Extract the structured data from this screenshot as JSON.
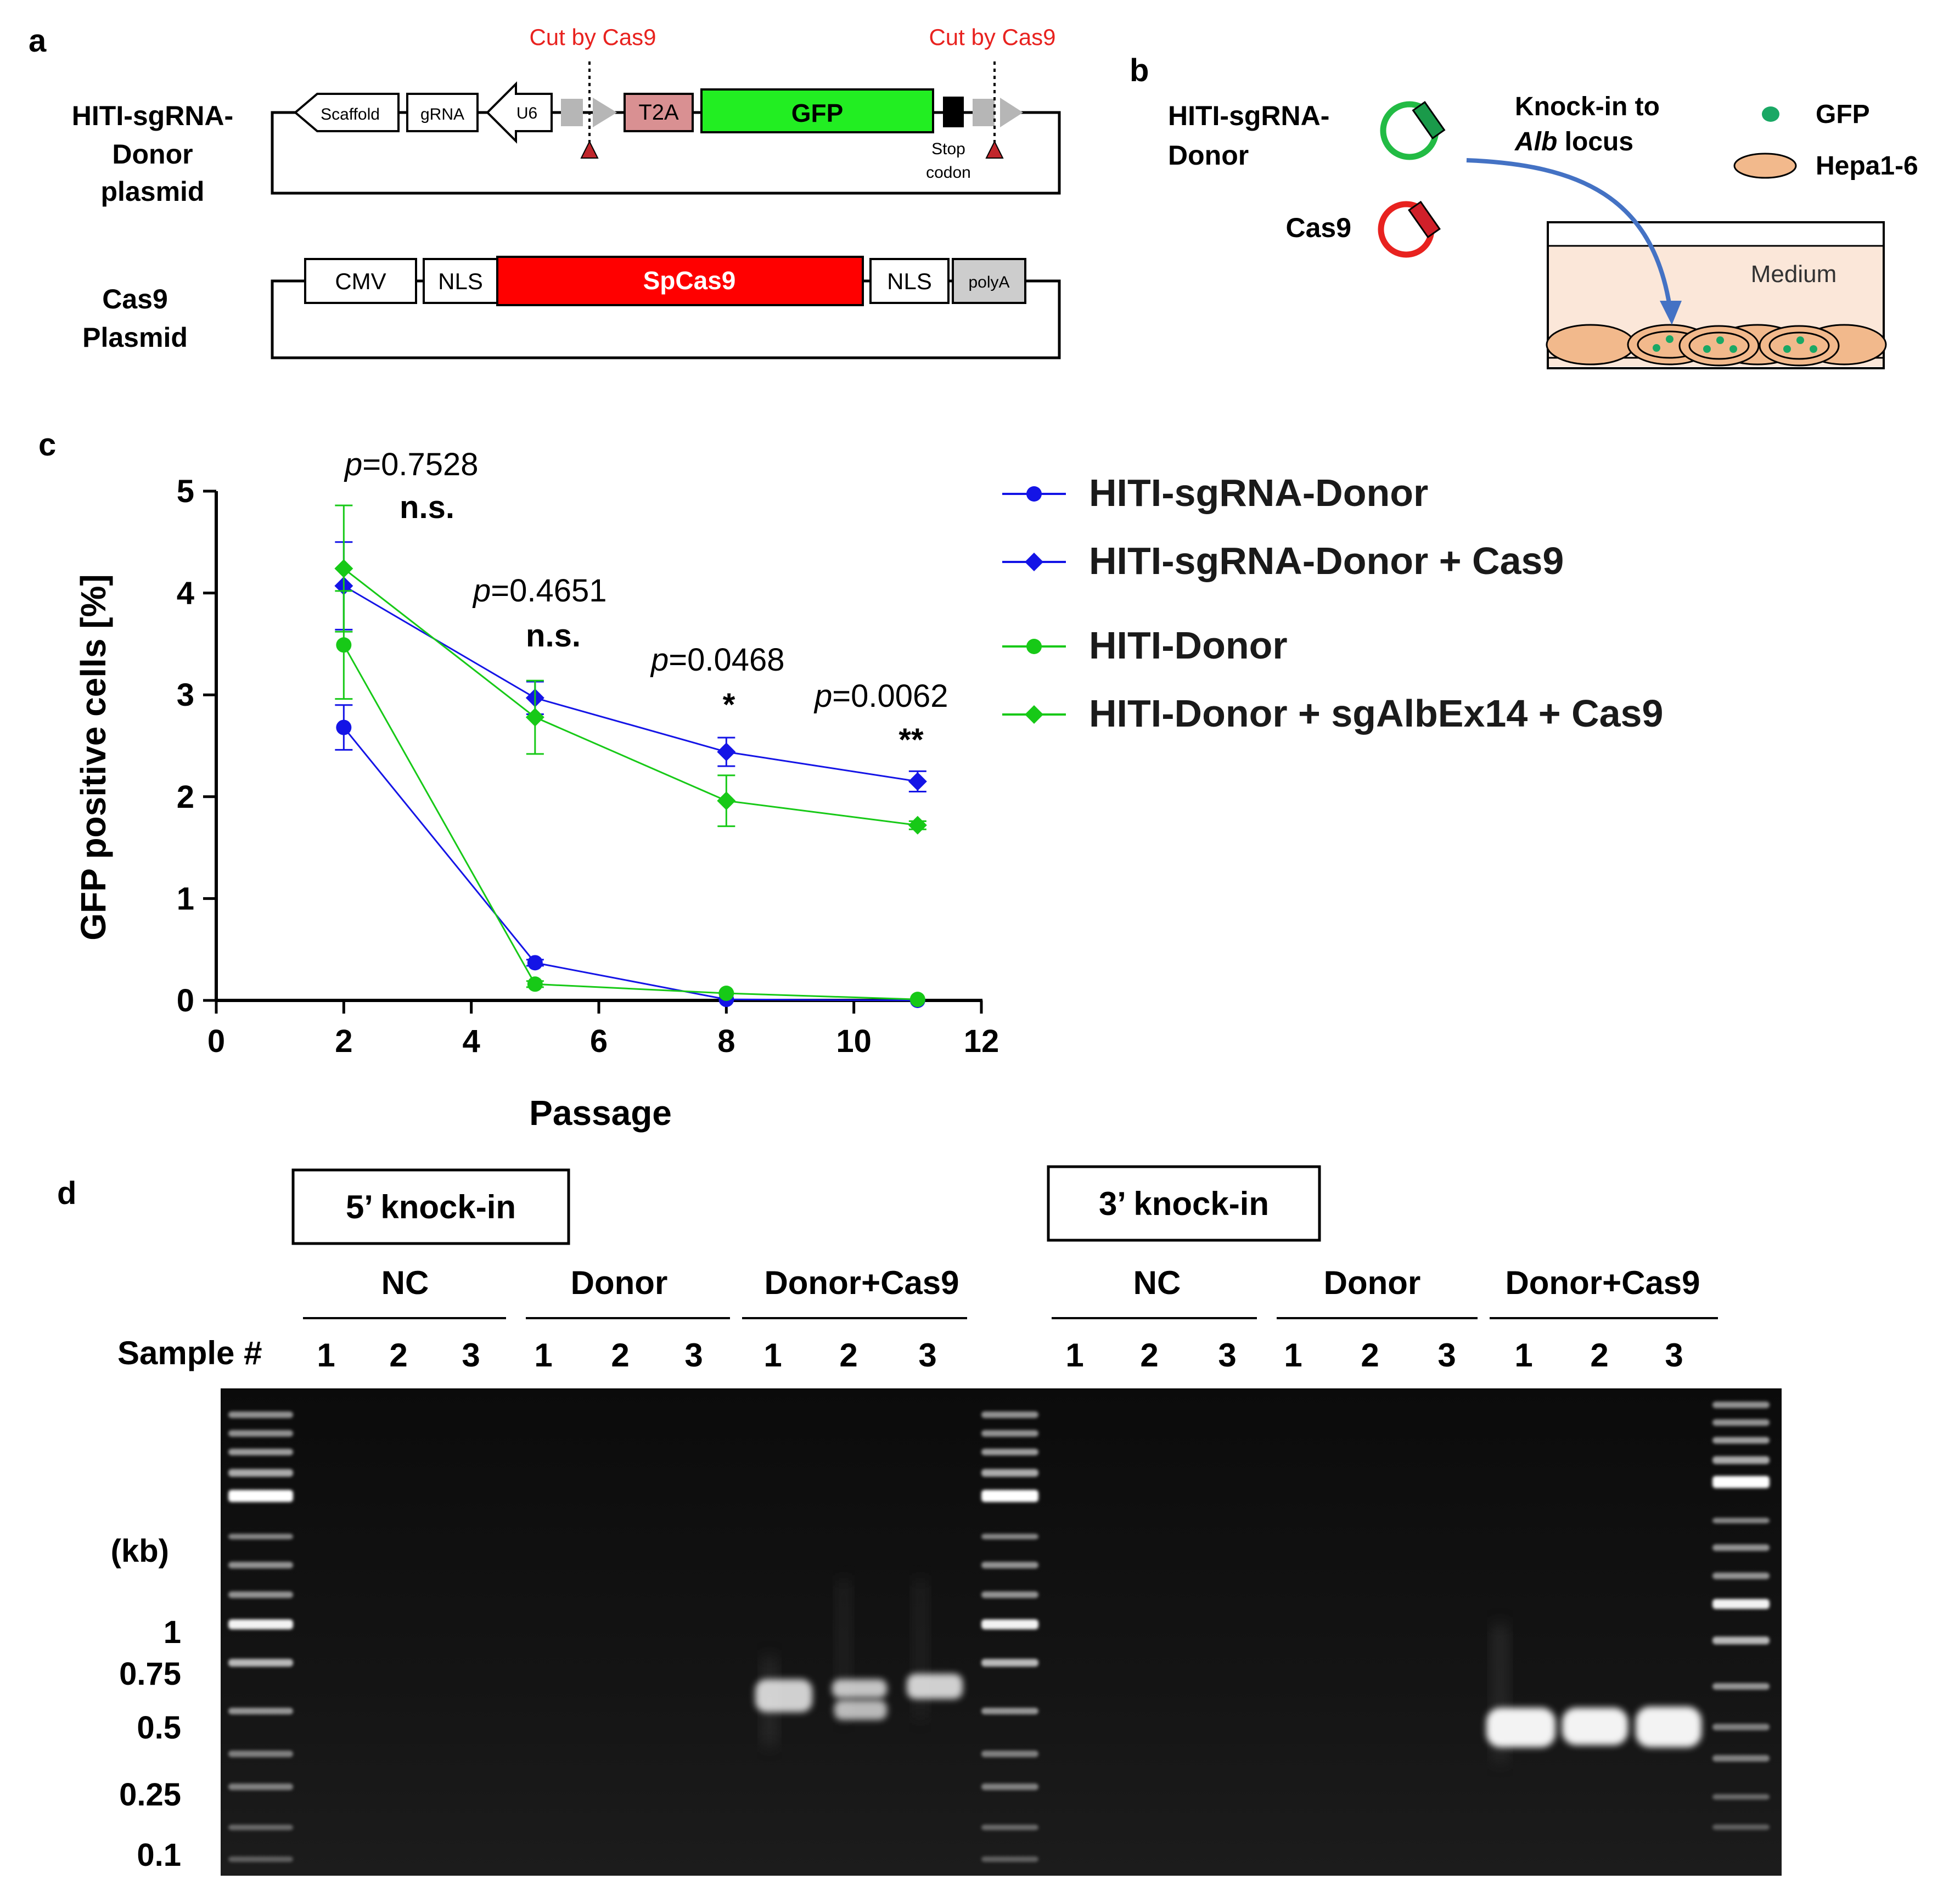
{
  "panel_labels": {
    "a": "a",
    "b": "b",
    "c": "c",
    "d": "d"
  },
  "panel_a": {
    "cut_label": "Cut by Cas9",
    "hiti_plasmid_lines": [
      "HITI-sgRNA-",
      "Donor",
      "plasmid"
    ],
    "hiti_elements": {
      "scaffold": "Scaffold",
      "grna": "gRNA",
      "u6": "U6",
      "t2a": "T2A",
      "gfp": "GFP"
    },
    "stop_codon_lines": [
      "Stop",
      "codon"
    ],
    "cas9_plasmid_lines": [
      "Cas9",
      "Plasmid"
    ],
    "cas9_elements": {
      "cmv": "CMV",
      "nls": "NLS",
      "spcas9": "SpCas9",
      "polya": "polyA"
    },
    "colors": {
      "gfp": "#22ee22",
      "t2a": "#d99092",
      "spcas9": "#ff0000",
      "cut_text": "#e8221f",
      "arrow_grey": "#b6b6b6"
    }
  },
  "panel_b": {
    "donor_lines": [
      "HITI-sgRNA-",
      "Donor"
    ],
    "cas9_label": "Cas9",
    "knockin_line1": "Knock-in to",
    "knockin_italic": "Alb",
    "knockin_rest": " locus",
    "legend_gfp": "GFP",
    "legend_hepa": "Hepa1-6",
    "medium_label": "Medium",
    "colors": {
      "donor_ring": "#22bb44",
      "cas9_ring": "#e8221f",
      "cell": "#f2b98c",
      "medium": "#fbe7d9",
      "gfp_dot": "#1aa865",
      "arrow": "#4472c4"
    }
  },
  "chart_data": {
    "type": "line",
    "xlabel": "Passage",
    "ylabel": "GFP positive cells [%]",
    "xlim": [
      0,
      12
    ],
    "ylim": [
      0,
      5
    ],
    "xticks": [
      0,
      2,
      4,
      6,
      8,
      10,
      12
    ],
    "yticks": [
      0,
      1,
      2,
      3,
      4,
      5
    ],
    "x": [
      2,
      5,
      8,
      11
    ],
    "legend_position": "right",
    "series": [
      {
        "name": "HITI-sgRNA-Donor",
        "color": "#1414e6",
        "marker": "circle",
        "values": [
          2.68,
          0.37,
          0.01,
          0.0
        ],
        "err": [
          0.22,
          0.03,
          0.01,
          0.01
        ]
      },
      {
        "name": "HITI-sgRNA-Donor + Cas9",
        "color": "#1414e6",
        "marker": "diamond",
        "values": [
          4.07,
          2.97,
          2.44,
          2.15
        ],
        "err": [
          0.43,
          0.16,
          0.14,
          0.1
        ]
      },
      {
        "name": "HITI-Donor",
        "color": "#17c917",
        "marker": "circle",
        "values": [
          3.49,
          0.16,
          0.07,
          0.01
        ],
        "err": [
          0.53,
          0.03,
          0.02,
          0.01
        ]
      },
      {
        "name": "HITI-Donor + sgAlbEx14 + Cas9",
        "color": "#17c917",
        "marker": "diamond",
        "values": [
          4.24,
          2.78,
          1.96,
          1.72
        ],
        "err": [
          0.62,
          0.36,
          0.25,
          0.04
        ]
      }
    ],
    "annotations": [
      {
        "p": "=0.7528",
        "sig": "n.s.",
        "x": 2
      },
      {
        "p": "=0.4651",
        "sig": "n.s.",
        "x": 5
      },
      {
        "p": "=0.0468",
        "sig": "*",
        "x": 8
      },
      {
        "p": "=0.0062",
        "sig": "**",
        "x": 11
      }
    ],
    "p_prefix": "p"
  },
  "panel_d": {
    "five_prime_label": "5’ knock-in",
    "three_prime_label": "3’ knock-in",
    "groups": [
      "NC",
      "Donor",
      "Donor+Cas9"
    ],
    "sample_label": "Sample #",
    "sample_numbers": [
      "1",
      "2",
      "3"
    ],
    "kb_label": "(kb)",
    "ladder_marks": [
      "1",
      "0.75",
      "0.5",
      "0.25",
      "0.1"
    ]
  }
}
